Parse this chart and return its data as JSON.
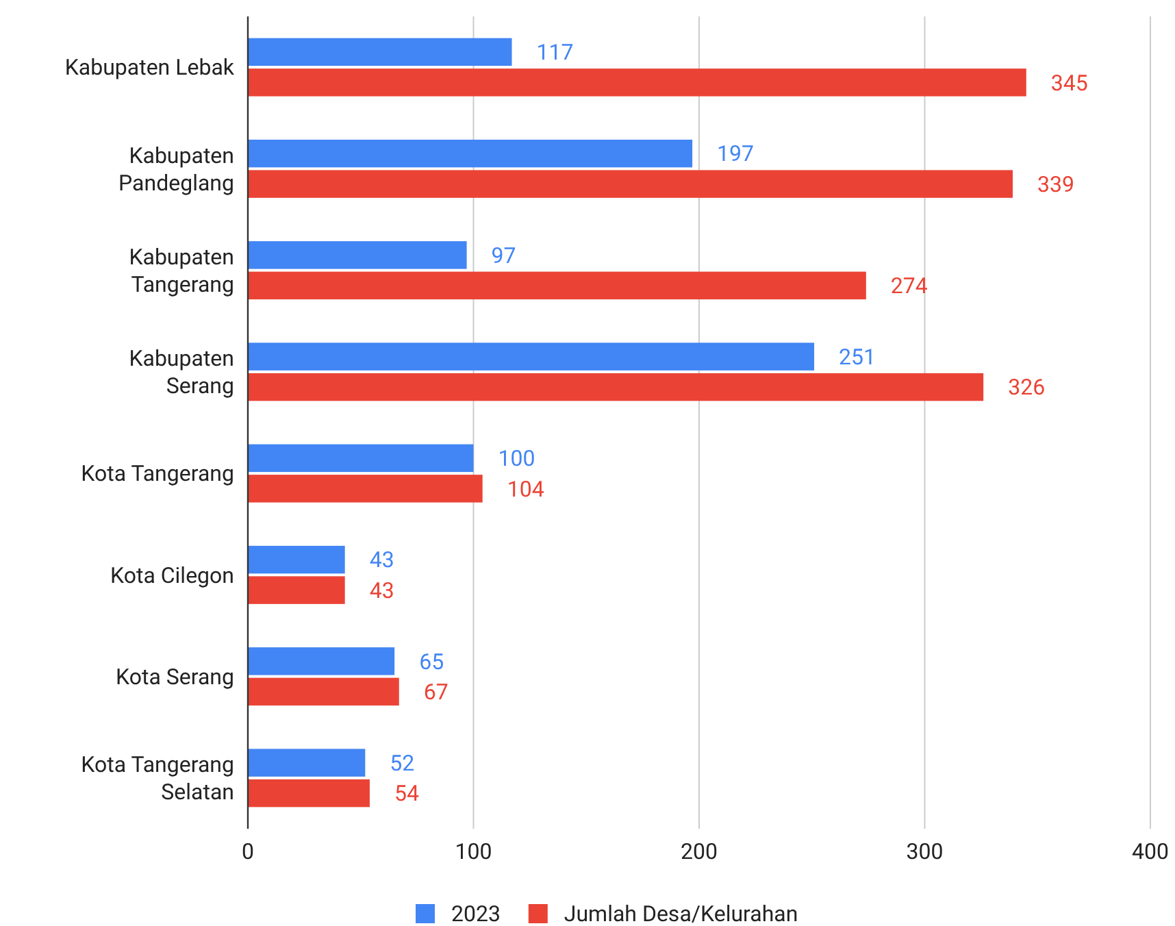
{
  "chart_data": {
    "type": "bar",
    "orientation": "horizontal",
    "categories": [
      "Kabupaten Lebak",
      "Kabupaten Pandeglang",
      "Kabupaten Tangerang",
      "Kabupaten Serang",
      "Kota Tangerang",
      "Kota Cilegon",
      "Kota Serang",
      "Kota Tangerang Selatan"
    ],
    "series": [
      {
        "name": "2023",
        "color": "#4285f4",
        "values": [
          117,
          197,
          97,
          251,
          100,
          43,
          65,
          52
        ]
      },
      {
        "name": "Jumlah Desa/Kelurahan",
        "color": "#ea4335",
        "values": [
          345,
          339,
          274,
          326,
          104,
          43,
          67,
          54
        ]
      }
    ],
    "xlim": [
      0,
      400
    ],
    "xticks": [
      0,
      100,
      200,
      300,
      400
    ],
    "grid": "x",
    "legend": "bottom",
    "data_labels": true
  }
}
